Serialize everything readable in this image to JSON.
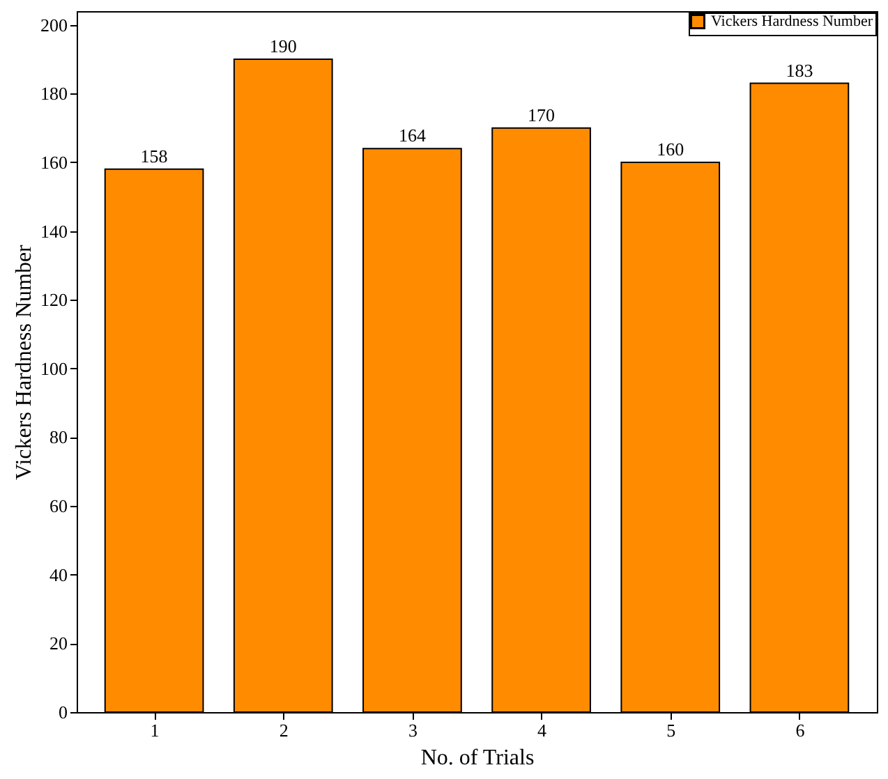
{
  "chart_data": {
    "type": "bar",
    "xlabel": "No. of Trials",
    "ylabel": "Vickers Hardness Number",
    "categories": [
      "1",
      "2",
      "3",
      "4",
      "5",
      "6"
    ],
    "series": [
      {
        "name": "Vickers Hardness Number",
        "color": "#ff8c00",
        "values": [
          158,
          190,
          164,
          170,
          160,
          183
        ]
      }
    ],
    "ylim": [
      0,
      204
    ],
    "yticks": [
      0,
      20,
      40,
      60,
      80,
      100,
      120,
      140,
      160,
      180,
      200
    ],
    "grid": false,
    "legend": "top right",
    "data_labels": true
  }
}
